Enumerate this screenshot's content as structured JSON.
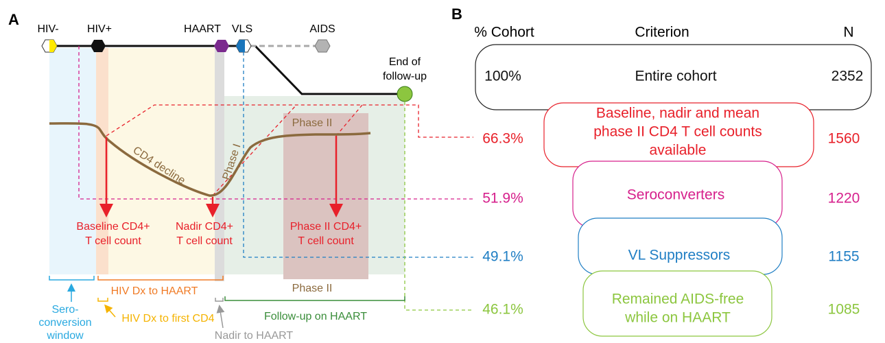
{
  "panel_a": {
    "label": "A",
    "events": [
      "HIV-",
      "HIV+",
      "HAART",
      "VLS",
      "AIDS"
    ],
    "end_label": [
      "End of",
      "follow-up"
    ],
    "curve_labels": {
      "cd4_decline": "CD4 decline",
      "phase_1": "Phase I",
      "phase_2": "Phase II"
    },
    "measures": {
      "baseline": [
        "Baseline CD4+",
        "T cell count"
      ],
      "nadir": [
        "Nadir CD4+",
        "T cell count"
      ],
      "phase_2": [
        "Phase II CD4+",
        "T cell count"
      ]
    },
    "intervals": {
      "seroconversion": [
        "Sero-",
        "conversion",
        "window"
      ],
      "dx_to_haart": "HIV Dx to HAART",
      "dx_to_first_cd4": "HIV Dx to first CD4",
      "phase_2": "Phase II",
      "follow_up": "Follow-up on HAART",
      "nadir_to_haart": "Nadir to HAART"
    }
  },
  "panel_b": {
    "label": "B",
    "headers": [
      "% Cohort",
      "Criterion",
      "N"
    ],
    "rows": [
      {
        "percent": "100%",
        "criterion": [
          "Entire cohort"
        ],
        "n": "2352"
      },
      {
        "percent": "66.3%",
        "criterion": [
          "Baseline, nadir and mean",
          "phase II CD4 T cell counts",
          "available"
        ],
        "n": "1560"
      },
      {
        "percent": "51.9%",
        "criterion": [
          "Seroconverters"
        ],
        "n": "1220"
      },
      {
        "percent": "49.1%",
        "criterion": [
          "VL Suppressors"
        ],
        "n": "1155"
      },
      {
        "percent": "46.1%",
        "criterion": [
          "Remained AIDS-free",
          "while on HAART"
        ],
        "n": "1085"
      }
    ]
  }
}
